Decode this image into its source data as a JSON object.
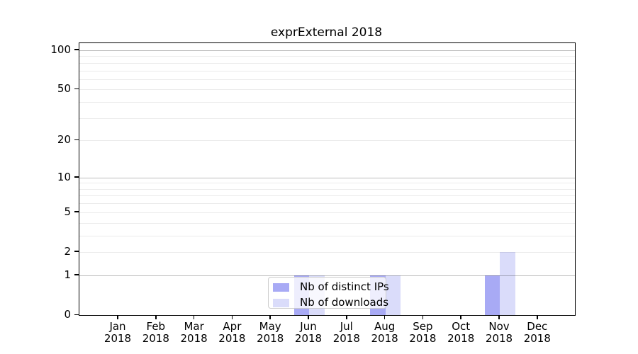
{
  "title": "exprExternal 2018",
  "legend": {
    "items": [
      {
        "label": "Nb of distinct IPs",
        "color": "#a8aaf5"
      },
      {
        "label": "Nb of downloads",
        "color": "#dadcfa"
      }
    ]
  },
  "chart_data": {
    "type": "bar",
    "title": "exprExternal 2018",
    "categories": [
      {
        "month": "Jan",
        "year": "2018"
      },
      {
        "month": "Feb",
        "year": "2018"
      },
      {
        "month": "Mar",
        "year": "2018"
      },
      {
        "month": "Apr",
        "year": "2018"
      },
      {
        "month": "May",
        "year": "2018"
      },
      {
        "month": "Jun",
        "year": "2018"
      },
      {
        "month": "Jul",
        "year": "2018"
      },
      {
        "month": "Aug",
        "year": "2018"
      },
      {
        "month": "Sep",
        "year": "2018"
      },
      {
        "month": "Oct",
        "year": "2018"
      },
      {
        "month": "Nov",
        "year": "2018"
      },
      {
        "month": "Dec",
        "year": "2018"
      }
    ],
    "series": [
      {
        "name": "Nb of distinct IPs",
        "color": "#a8aaf5",
        "values": [
          0,
          0,
          0,
          0,
          0,
          1,
          0,
          1,
          0,
          0,
          1,
          0
        ]
      },
      {
        "name": "Nb of downloads",
        "color": "#dadcfa",
        "values": [
          0,
          0,
          0,
          0,
          0,
          1,
          0,
          1,
          0,
          0,
          2,
          0
        ]
      }
    ],
    "xlabel": "",
    "ylabel": "",
    "yscale": "log1p",
    "ylim": [
      0,
      112
    ],
    "y_tick_values": [
      0,
      1,
      2,
      5,
      10,
      20,
      50,
      100
    ],
    "y_tick_labels": [
      "0",
      "1",
      "2",
      "5",
      "10",
      "20",
      "50",
      "100"
    ],
    "y_major_grid": [
      1,
      10,
      100
    ],
    "y_minor_grid": [
      2,
      3,
      4,
      5,
      6,
      7,
      8,
      9,
      20,
      30,
      40,
      50,
      60,
      70,
      80,
      90
    ],
    "grid": true,
    "legend_position": "lower center"
  }
}
